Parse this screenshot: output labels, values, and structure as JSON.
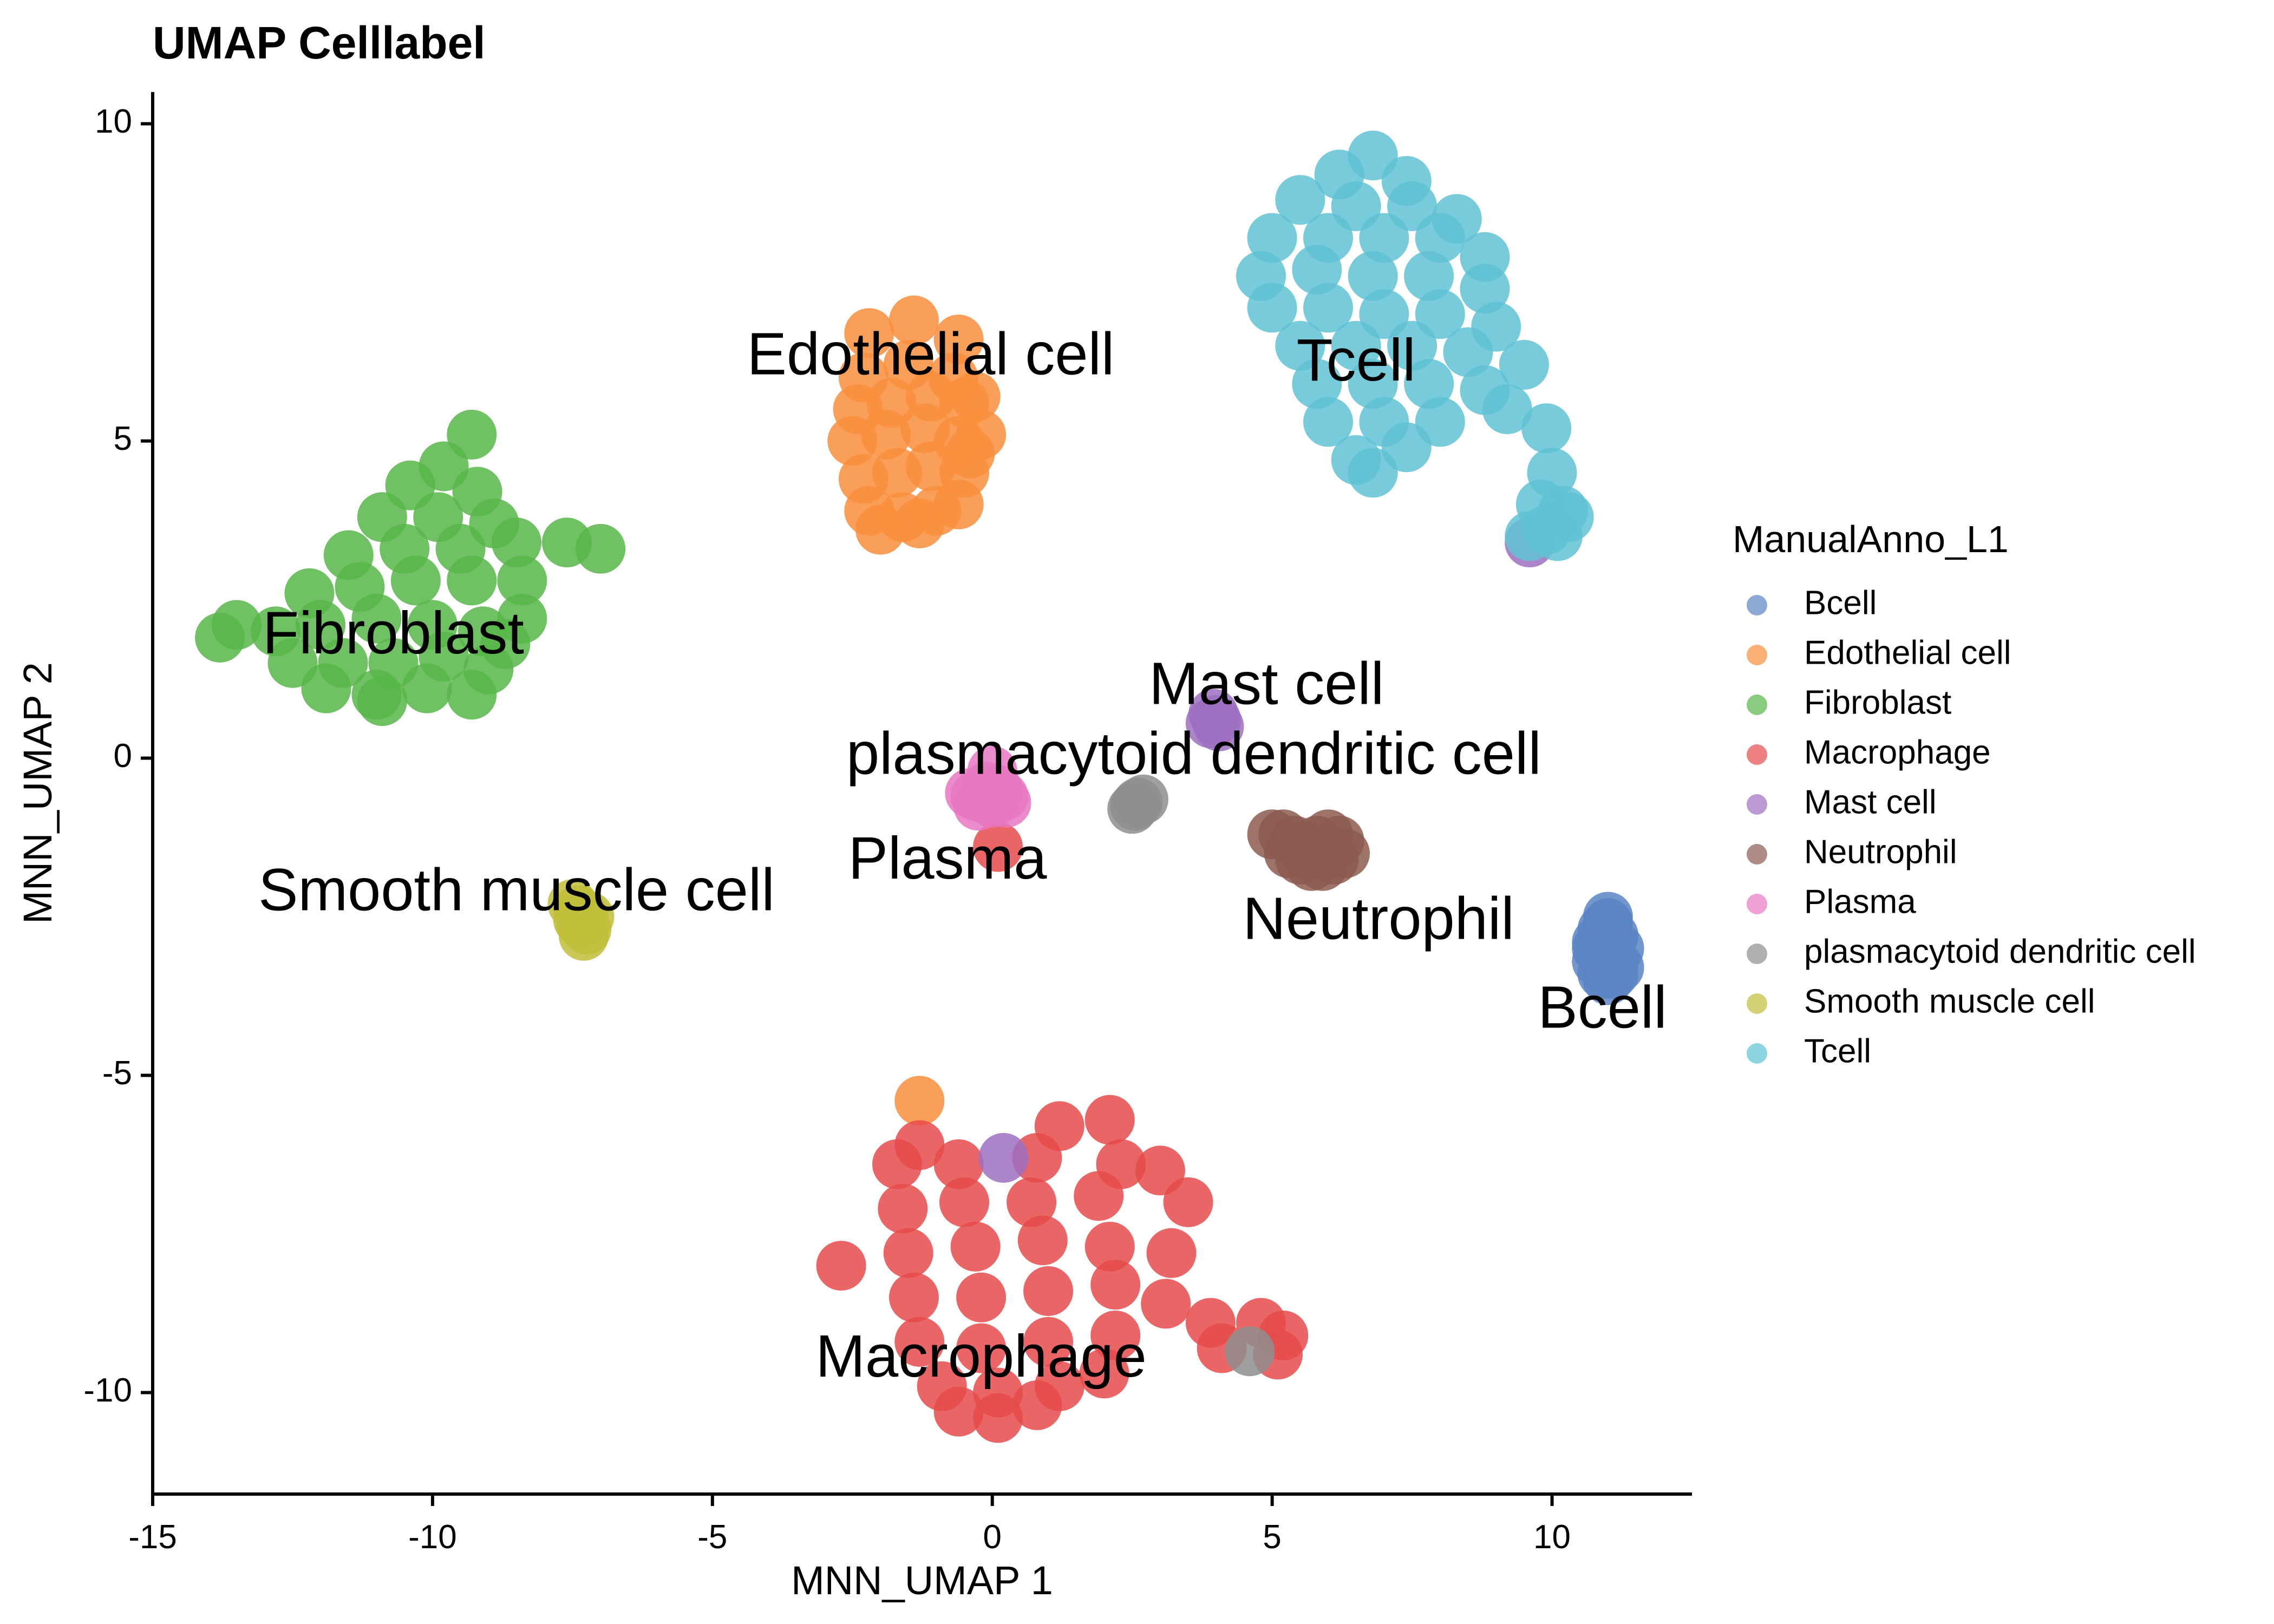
{
  "chart_data": {
    "type": "scatter",
    "title": "UMAP Celllabel",
    "xlabel": "MNN_UMAP 1",
    "ylabel": "MNN_UMAP 2",
    "xlim": [
      -15,
      12.5
    ],
    "ylim": [
      -11.6,
      10.5
    ],
    "x_ticks": [
      -15,
      -10,
      -5,
      0,
      5,
      10
    ],
    "y_ticks": [
      -10,
      -5,
      0,
      5,
      10
    ],
    "grid": false,
    "legend": {
      "title": "ManualAnno_L1",
      "position": "right",
      "items": [
        {
          "label": "Bcell",
          "color": "#5B84C4"
        },
        {
          "label": "Edothelial cell",
          "color": "#F98E3C"
        },
        {
          "label": "Fibroblast",
          "color": "#57B648"
        },
        {
          "label": "Macrophage",
          "color": "#E64B4B"
        },
        {
          "label": "Mast cell",
          "color": "#9E6EC1"
        },
        {
          "label": "Neutrophil",
          "color": "#8C5A50"
        },
        {
          "label": "Plasma",
          "color": "#E877C2"
        },
        {
          "label": "plasmacytoid dendritic cell",
          "color": "#8E8E8E"
        },
        {
          "label": "Smooth muscle cell",
          "color": "#BFBE3A"
        },
        {
          "label": "Tcell",
          "color": "#5FC2D4"
        }
      ]
    },
    "series": [
      {
        "name": "Bcell",
        "color": "#5B84C4",
        "label_text": "Bcell",
        "label_xy": [
          10.9,
          -4.0
        ],
        "points": [
          [
            11.0,
            -2.5
          ],
          [
            10.9,
            -2.7
          ],
          [
            11.1,
            -2.8
          ],
          [
            10.8,
            -2.9
          ],
          [
            11.0,
            -3.0
          ],
          [
            11.2,
            -3.0
          ],
          [
            10.9,
            -3.1
          ],
          [
            11.1,
            -3.2
          ],
          [
            10.8,
            -3.2
          ],
          [
            11.0,
            -3.3
          ],
          [
            11.2,
            -3.3
          ],
          [
            10.9,
            -3.4
          ],
          [
            11.1,
            -3.4
          ],
          [
            11.0,
            -3.5
          ],
          [
            10.8,
            -3.0
          ],
          [
            11.0,
            -2.6
          ]
        ]
      },
      {
        "name": "Edothelial cell",
        "color": "#F98E3C",
        "label_text": "Edothelial cell",
        "label_xy": [
          -1.1,
          6.3
        ],
        "points": [
          [
            -1.4,
            6.9
          ],
          [
            -2.2,
            6.7
          ],
          [
            -0.6,
            6.6
          ],
          [
            -2.3,
            6.0
          ],
          [
            -1.5,
            6.2
          ],
          [
            -0.7,
            6.0
          ],
          [
            -2.4,
            5.5
          ],
          [
            -1.8,
            5.6
          ],
          [
            -1.1,
            5.7
          ],
          [
            -0.5,
            5.6
          ],
          [
            -2.5,
            5.0
          ],
          [
            -1.9,
            5.1
          ],
          [
            -1.2,
            5.2
          ],
          [
            -0.6,
            5.0
          ],
          [
            -2.3,
            4.4
          ],
          [
            -1.7,
            4.5
          ],
          [
            -1.1,
            4.6
          ],
          [
            -0.5,
            4.5
          ],
          [
            -2.2,
            3.9
          ],
          [
            -1.6,
            3.8
          ],
          [
            -1.0,
            3.9
          ],
          [
            -0.6,
            4.0
          ],
          [
            -2.0,
            3.6
          ],
          [
            -1.3,
            3.7
          ],
          [
            -0.3,
            5.7
          ],
          [
            -0.2,
            5.1
          ],
          [
            -0.4,
            4.8
          ],
          [
            -1.3,
            -5.4
          ]
        ]
      },
      {
        "name": "Fibroblast",
        "color": "#57B648",
        "label_text": "Fibroblast",
        "label_xy": [
          -10.7,
          1.9
        ],
        "points": [
          [
            -9.3,
            5.1
          ],
          [
            -9.8,
            4.6
          ],
          [
            -10.4,
            4.3
          ],
          [
            -9.2,
            4.2
          ],
          [
            -10.9,
            3.8
          ],
          [
            -9.9,
            3.8
          ],
          [
            -8.9,
            3.7
          ],
          [
            -11.5,
            3.2
          ],
          [
            -10.5,
            3.3
          ],
          [
            -9.5,
            3.3
          ],
          [
            -8.5,
            3.4
          ],
          [
            -7.6,
            3.4
          ],
          [
            -7.0,
            3.3
          ],
          [
            -12.2,
            2.6
          ],
          [
            -11.3,
            2.7
          ],
          [
            -10.3,
            2.8
          ],
          [
            -9.3,
            2.8
          ],
          [
            -8.4,
            2.8
          ],
          [
            -13.5,
            2.1
          ],
          [
            -12.8,
            2.0
          ],
          [
            -12.0,
            2.1
          ],
          [
            -11.0,
            2.2
          ],
          [
            -10.0,
            2.1
          ],
          [
            -9.1,
            2.0
          ],
          [
            -13.8,
            1.9
          ],
          [
            -12.5,
            1.5
          ],
          [
            -11.6,
            1.5
          ],
          [
            -10.7,
            1.5
          ],
          [
            -9.8,
            1.6
          ],
          [
            -9.0,
            1.4
          ],
          [
            -11.9,
            1.1
          ],
          [
            -11.0,
            1.0
          ],
          [
            -10.1,
            1.1
          ],
          [
            -9.3,
            1.0
          ],
          [
            -8.7,
            1.8
          ],
          [
            -8.4,
            2.2
          ],
          [
            -10.9,
            0.9
          ]
        ]
      },
      {
        "name": "Macrophage",
        "color": "#E64B4B",
        "label_text": "Macrophage",
        "label_xy": [
          -0.2,
          -9.5
        ],
        "points": [
          [
            1.2,
            -5.8
          ],
          [
            2.1,
            -5.7
          ],
          [
            -1.7,
            -6.4
          ],
          [
            -0.6,
            -6.4
          ],
          [
            0.8,
            -6.3
          ],
          [
            2.3,
            -6.4
          ],
          [
            3.0,
            -6.5
          ],
          [
            -1.6,
            -7.1
          ],
          [
            -0.5,
            -7.0
          ],
          [
            0.7,
            -7.0
          ],
          [
            1.9,
            -6.9
          ],
          [
            3.5,
            -7.0
          ],
          [
            -1.5,
            -7.8
          ],
          [
            -0.3,
            -7.7
          ],
          [
            0.9,
            -7.6
          ],
          [
            2.1,
            -7.7
          ],
          [
            3.2,
            -7.8
          ],
          [
            -1.4,
            -8.5
          ],
          [
            -0.2,
            -8.5
          ],
          [
            1.0,
            -8.4
          ],
          [
            2.2,
            -8.3
          ],
          [
            3.1,
            -8.6
          ],
          [
            3.9,
            -8.9
          ],
          [
            4.8,
            -8.9
          ],
          [
            5.2,
            -9.1
          ],
          [
            5.1,
            -9.4
          ],
          [
            4.1,
            -9.3
          ],
          [
            -1.3,
            -9.2
          ],
          [
            -0.2,
            -9.3
          ],
          [
            1.0,
            -9.2
          ],
          [
            2.2,
            -9.1
          ],
          [
            -0.9,
            -9.9
          ],
          [
            0.1,
            -10.0
          ],
          [
            1.2,
            -9.9
          ],
          [
            2.0,
            -9.7
          ],
          [
            -0.6,
            -10.3
          ],
          [
            0.1,
            -10.4
          ],
          [
            0.8,
            -10.2
          ],
          [
            -2.7,
            -8.0
          ],
          [
            -1.3,
            -6.1
          ],
          [
            0.1,
            -1.4
          ]
        ]
      },
      {
        "name": "Mast cell",
        "color": "#9E6EC1",
        "label_text": "Mast cell",
        "label_xy": [
          4.9,
          1.1
        ],
        "points": [
          [
            3.95,
            0.7
          ],
          [
            4.0,
            0.6
          ],
          [
            3.9,
            0.55
          ],
          [
            4.05,
            0.5
          ],
          [
            9.6,
            3.4
          ],
          [
            0.2,
            -6.3
          ]
        ]
      },
      {
        "name": "Neutrophil",
        "color": "#8C5A50",
        "label_text": "Neutrophil",
        "label_xy": [
          6.9,
          -2.6
        ],
        "points": [
          [
            5.0,
            -1.2
          ],
          [
            5.2,
            -1.2
          ],
          [
            5.4,
            -1.3
          ],
          [
            5.6,
            -1.4
          ],
          [
            5.8,
            -1.3
          ],
          [
            6.0,
            -1.2
          ],
          [
            6.2,
            -1.3
          ],
          [
            5.3,
            -1.5
          ],
          [
            5.5,
            -1.6
          ],
          [
            5.7,
            -1.7
          ],
          [
            5.9,
            -1.7
          ],
          [
            6.1,
            -1.6
          ],
          [
            6.3,
            -1.5
          ],
          [
            6.0,
            -1.5
          ],
          [
            5.6,
            -1.5
          ]
        ]
      },
      {
        "name": "Plasma",
        "color": "#E877C2",
        "label_text": "Plasma",
        "label_xy": [
          -0.8,
          -1.65
        ],
        "points": [
          [
            0.0,
            -0.2
          ],
          [
            -0.1,
            -0.45
          ],
          [
            0.1,
            -0.5
          ],
          [
            -0.3,
            -0.6
          ],
          [
            -0.1,
            -0.65
          ],
          [
            0.2,
            -0.6
          ],
          [
            -0.4,
            -0.55
          ],
          [
            0.0,
            -0.7
          ],
          [
            0.25,
            -0.7
          ],
          [
            -0.25,
            -0.75
          ]
        ]
      },
      {
        "name": "plasmacytoid dendritic cell",
        "color": "#8E8E8E",
        "label_text": "plasmacytoid dendritic cell",
        "label_xy": [
          3.6,
          0.0
        ],
        "points": [
          [
            2.5,
            -0.8
          ],
          [
            2.6,
            -0.7
          ],
          [
            2.7,
            -0.65
          ],
          [
            2.55,
            -0.75
          ],
          [
            4.6,
            -9.35
          ]
        ]
      },
      {
        "name": "Smooth muscle cell",
        "color": "#BFBE3A",
        "label_text": "Smooth muscle cell",
        "label_xy": [
          -8.5,
          -2.15
        ],
        "points": [
          [
            -7.5,
            -2.3
          ],
          [
            -7.4,
            -2.4
          ],
          [
            -7.3,
            -2.5
          ],
          [
            -7.35,
            -2.6
          ],
          [
            -7.25,
            -2.7
          ],
          [
            -7.2,
            -2.5
          ],
          [
            -7.4,
            -2.55
          ],
          [
            -7.3,
            -2.8
          ]
        ]
      },
      {
        "name": "Tcell",
        "color": "#5FC2D4",
        "label_text": "Tcell",
        "label_xy": [
          6.5,
          6.2
        ],
        "points": [
          [
            6.8,
            9.5
          ],
          [
            6.2,
            9.2
          ],
          [
            7.4,
            9.1
          ],
          [
            5.5,
            8.8
          ],
          [
            6.5,
            8.7
          ],
          [
            7.5,
            8.7
          ],
          [
            8.3,
            8.5
          ],
          [
            5.0,
            8.2
          ],
          [
            6.0,
            8.2
          ],
          [
            7.0,
            8.2
          ],
          [
            8.0,
            8.2
          ],
          [
            8.8,
            7.9
          ],
          [
            4.8,
            7.6
          ],
          [
            5.8,
            7.7
          ],
          [
            6.8,
            7.6
          ],
          [
            7.8,
            7.6
          ],
          [
            8.8,
            7.4
          ],
          [
            5.0,
            7.1
          ],
          [
            6.0,
            7.1
          ],
          [
            7.0,
            7.0
          ],
          [
            8.0,
            7.0
          ],
          [
            9.0,
            6.8
          ],
          [
            5.5,
            6.5
          ],
          [
            6.5,
            6.5
          ],
          [
            7.5,
            6.5
          ],
          [
            8.5,
            6.4
          ],
          [
            9.5,
            6.2
          ],
          [
            5.8,
            5.9
          ],
          [
            6.8,
            5.9
          ],
          [
            7.8,
            5.9
          ],
          [
            8.8,
            5.8
          ],
          [
            6.0,
            5.3
          ],
          [
            7.0,
            5.3
          ],
          [
            8.0,
            5.3
          ],
          [
            9.2,
            5.5
          ],
          [
            6.5,
            4.7
          ],
          [
            7.4,
            4.9
          ],
          [
            6.8,
            4.5
          ],
          [
            9.9,
            5.2
          ],
          [
            10.0,
            4.5
          ],
          [
            9.8,
            4.0
          ],
          [
            10.2,
            3.9
          ],
          [
            9.9,
            3.6
          ],
          [
            10.1,
            3.5
          ],
          [
            10.3,
            3.8
          ],
          [
            9.6,
            3.5
          ]
        ]
      }
    ]
  }
}
